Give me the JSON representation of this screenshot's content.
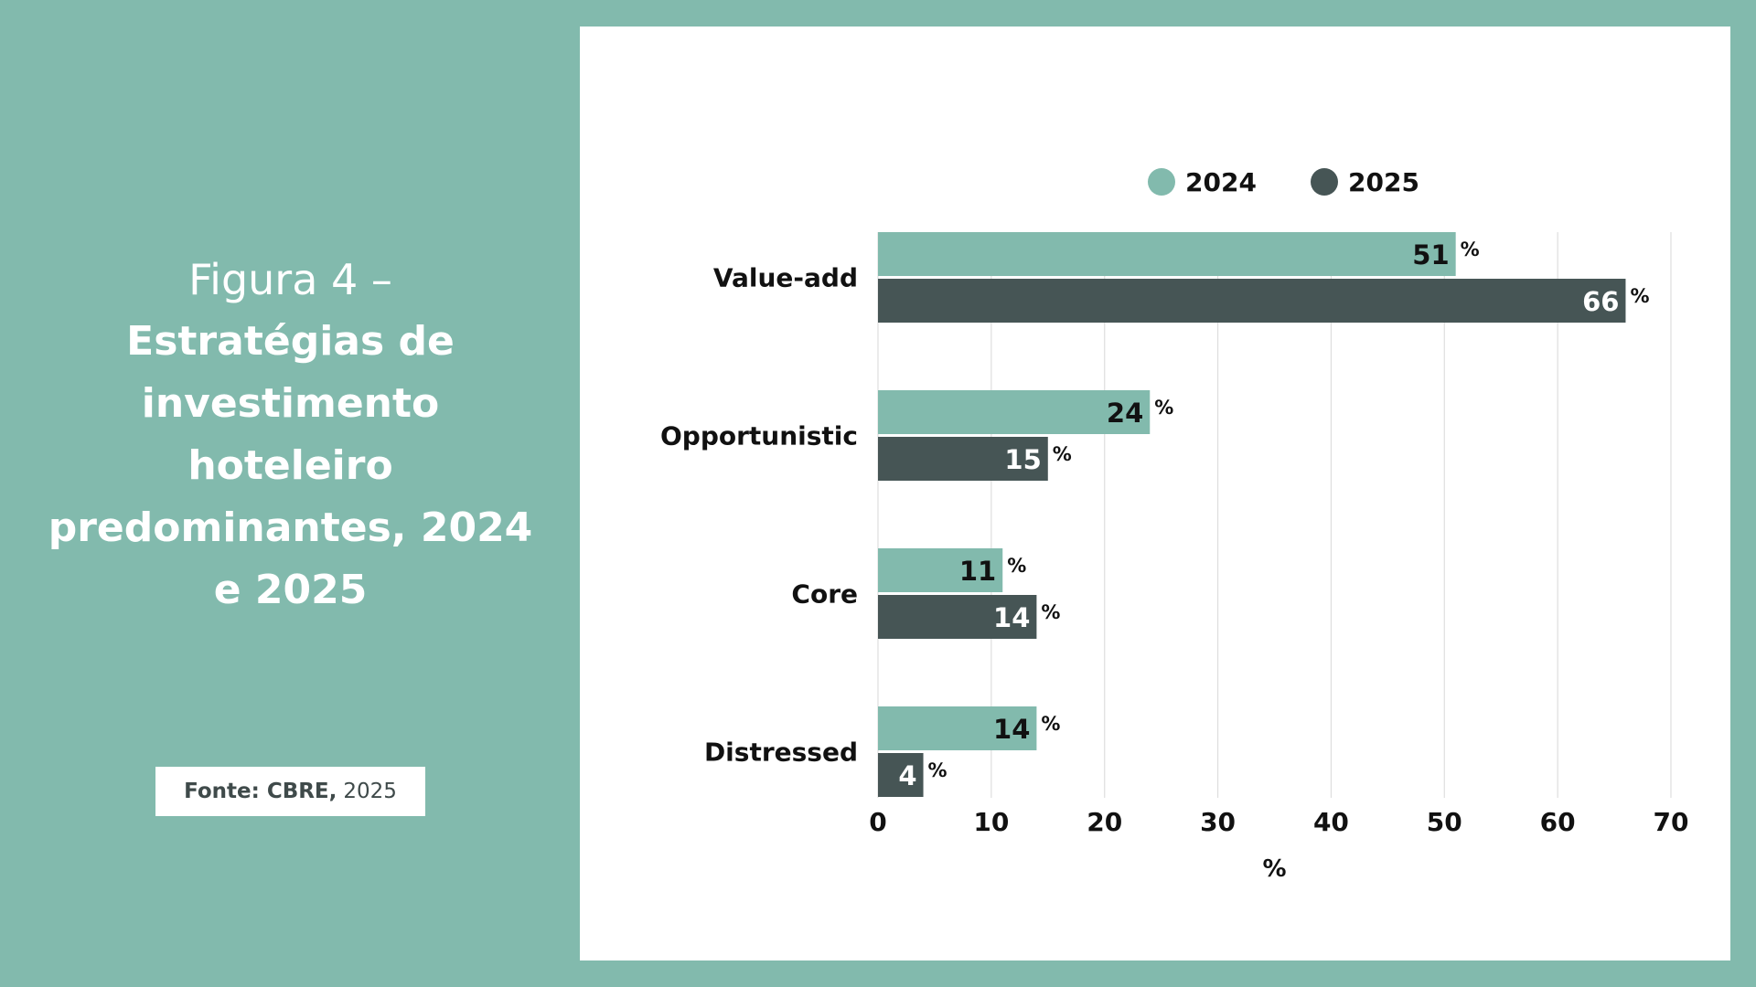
{
  "figure": {
    "label": "Figura 4 –",
    "title": "Estratégias de investimento hoteleiro predominantes, 2024 e 2025"
  },
  "source": {
    "label": "Fonte: CBRE,",
    "year": "2025"
  },
  "colors": {
    "background": "#82BAAD",
    "series_2024": "#82BAAD",
    "series_2025": "#465555"
  },
  "chart_data": {
    "type": "bar",
    "orientation": "horizontal",
    "title": "",
    "categories": [
      "Value-add",
      "Opportunistic",
      "Core",
      "Distressed"
    ],
    "series": [
      {
        "name": "2024",
        "values": [
          51,
          24,
          11,
          14
        ]
      },
      {
        "name": "2025",
        "values": [
          66,
          15,
          14,
          4
        ]
      }
    ],
    "value_suffix": "%",
    "xlabel": "%",
    "ylabel": "",
    "xlim": [
      0,
      70
    ],
    "xticks": [
      0,
      10,
      20,
      30,
      40,
      50,
      60,
      70
    ],
    "grid": "vertical",
    "legend_position": "top"
  }
}
